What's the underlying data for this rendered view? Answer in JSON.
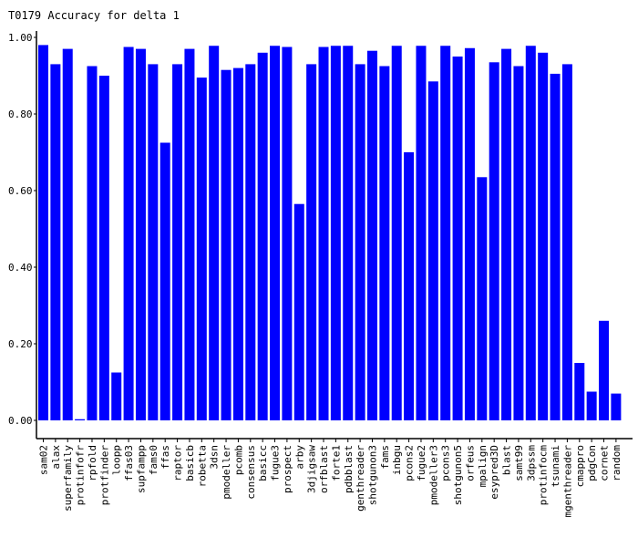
{
  "chart_data": {
    "type": "bar",
    "title": "T0179 Accuracy for delta 1",
    "xlabel": "",
    "ylabel": "",
    "ylim": [
      0,
      1
    ],
    "yticks": [
      "0.00",
      "0.20",
      "0.40",
      "0.60",
      "0.80",
      "1.00"
    ],
    "grid": false,
    "bar_color": "#0000ff",
    "categories": [
      "sam02",
      "alax",
      "superfamily",
      "protinfofr",
      "rpfold",
      "protfinder",
      "loopp",
      "ffas03",
      "supfampp",
      "fams0",
      "ffas",
      "raptor",
      "basicb",
      "robetta",
      "3dsn",
      "pmodeller",
      "pcomb",
      "consensus",
      "basicc",
      "fugue3",
      "prospect",
      "arby",
      "3djigsaw",
      "orfblast",
      "forte1",
      "pdbblast",
      "genthreader",
      "shotgunon3",
      "fams",
      "inbgu",
      "pcons2",
      "fugue2",
      "pmodeller3",
      "pcons3",
      "shotgunon5",
      "orfeus",
      "mpalign",
      "esypred3D",
      "blast",
      "samt99",
      "3dpssm",
      "protinfocm",
      "tsunami",
      "mgenthreader",
      "cmappro",
      "pdgCon",
      "cornet",
      "random"
    ],
    "values": [
      0.98,
      0.93,
      0.97,
      0.003,
      0.925,
      0.9,
      0.125,
      0.975,
      0.97,
      0.93,
      0.725,
      0.93,
      0.97,
      0.895,
      0.978,
      0.915,
      0.92,
      0.93,
      0.96,
      0.978,
      0.975,
      0.565,
      0.93,
      0.975,
      0.978,
      0.978,
      0.93,
      0.965,
      0.925,
      0.978,
      0.7,
      0.978,
      0.885,
      0.978,
      0.95,
      0.972,
      0.635,
      0.935,
      0.97,
      0.925,
      0.978,
      0.96,
      0.905,
      0.93,
      0.15,
      0.075,
      0.26,
      0.07
    ]
  }
}
